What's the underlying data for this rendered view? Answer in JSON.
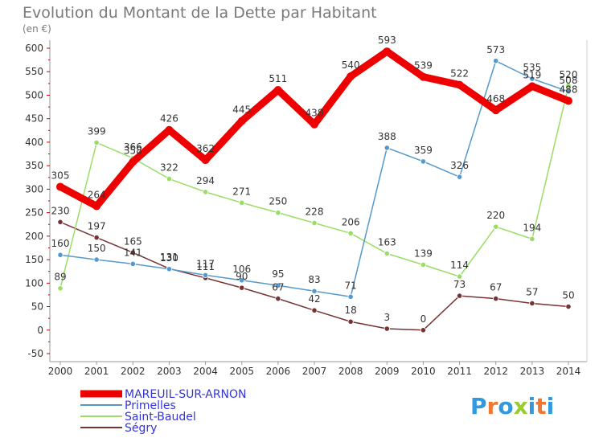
{
  "chart_data": {
    "type": "line",
    "title": "Evolution du Montant de la Dette par Habitant",
    "subtitle": "(en €)",
    "x": [
      "2000",
      "2001",
      "2002",
      "2003",
      "2004",
      "2005",
      "2006",
      "2007",
      "2008",
      "2009",
      "2010",
      "2011",
      "2012",
      "2013",
      "2014"
    ],
    "ylim": [
      -50,
      600
    ],
    "yticks": [
      -50,
      0,
      50,
      100,
      150,
      200,
      250,
      300,
      350,
      400,
      450,
      500,
      550,
      600
    ],
    "grid": false,
    "legend_position": "bottom-left",
    "series": [
      {
        "name": "MAREUIL-SUR-ARNON",
        "color": "#ee0000",
        "values": [
          305,
          264,
          358,
          426,
          362,
          445,
          511,
          438,
          540,
          593,
          539,
          522,
          468,
          519,
          488
        ]
      },
      {
        "name": "Primelles",
        "color": "#5599cc",
        "values": [
          160,
          150,
          141,
          130,
          117,
          106,
          95,
          83,
          71,
          388,
          359,
          326,
          573,
          535,
          508
        ]
      },
      {
        "name": "Saint-Baudel",
        "color": "#99dd66",
        "values": [
          89,
          399,
          366,
          322,
          294,
          271,
          250,
          228,
          206,
          163,
          139,
          114,
          220,
          194,
          520
        ]
      },
      {
        "name": "Ségry",
        "color": "#773333",
        "values": [
          230,
          197,
          165,
          131,
          111,
          90,
          67,
          42,
          18,
          3,
          0,
          73,
          67,
          57,
          50
        ]
      }
    ]
  },
  "brand": {
    "logo_text": "Proxiti"
  }
}
